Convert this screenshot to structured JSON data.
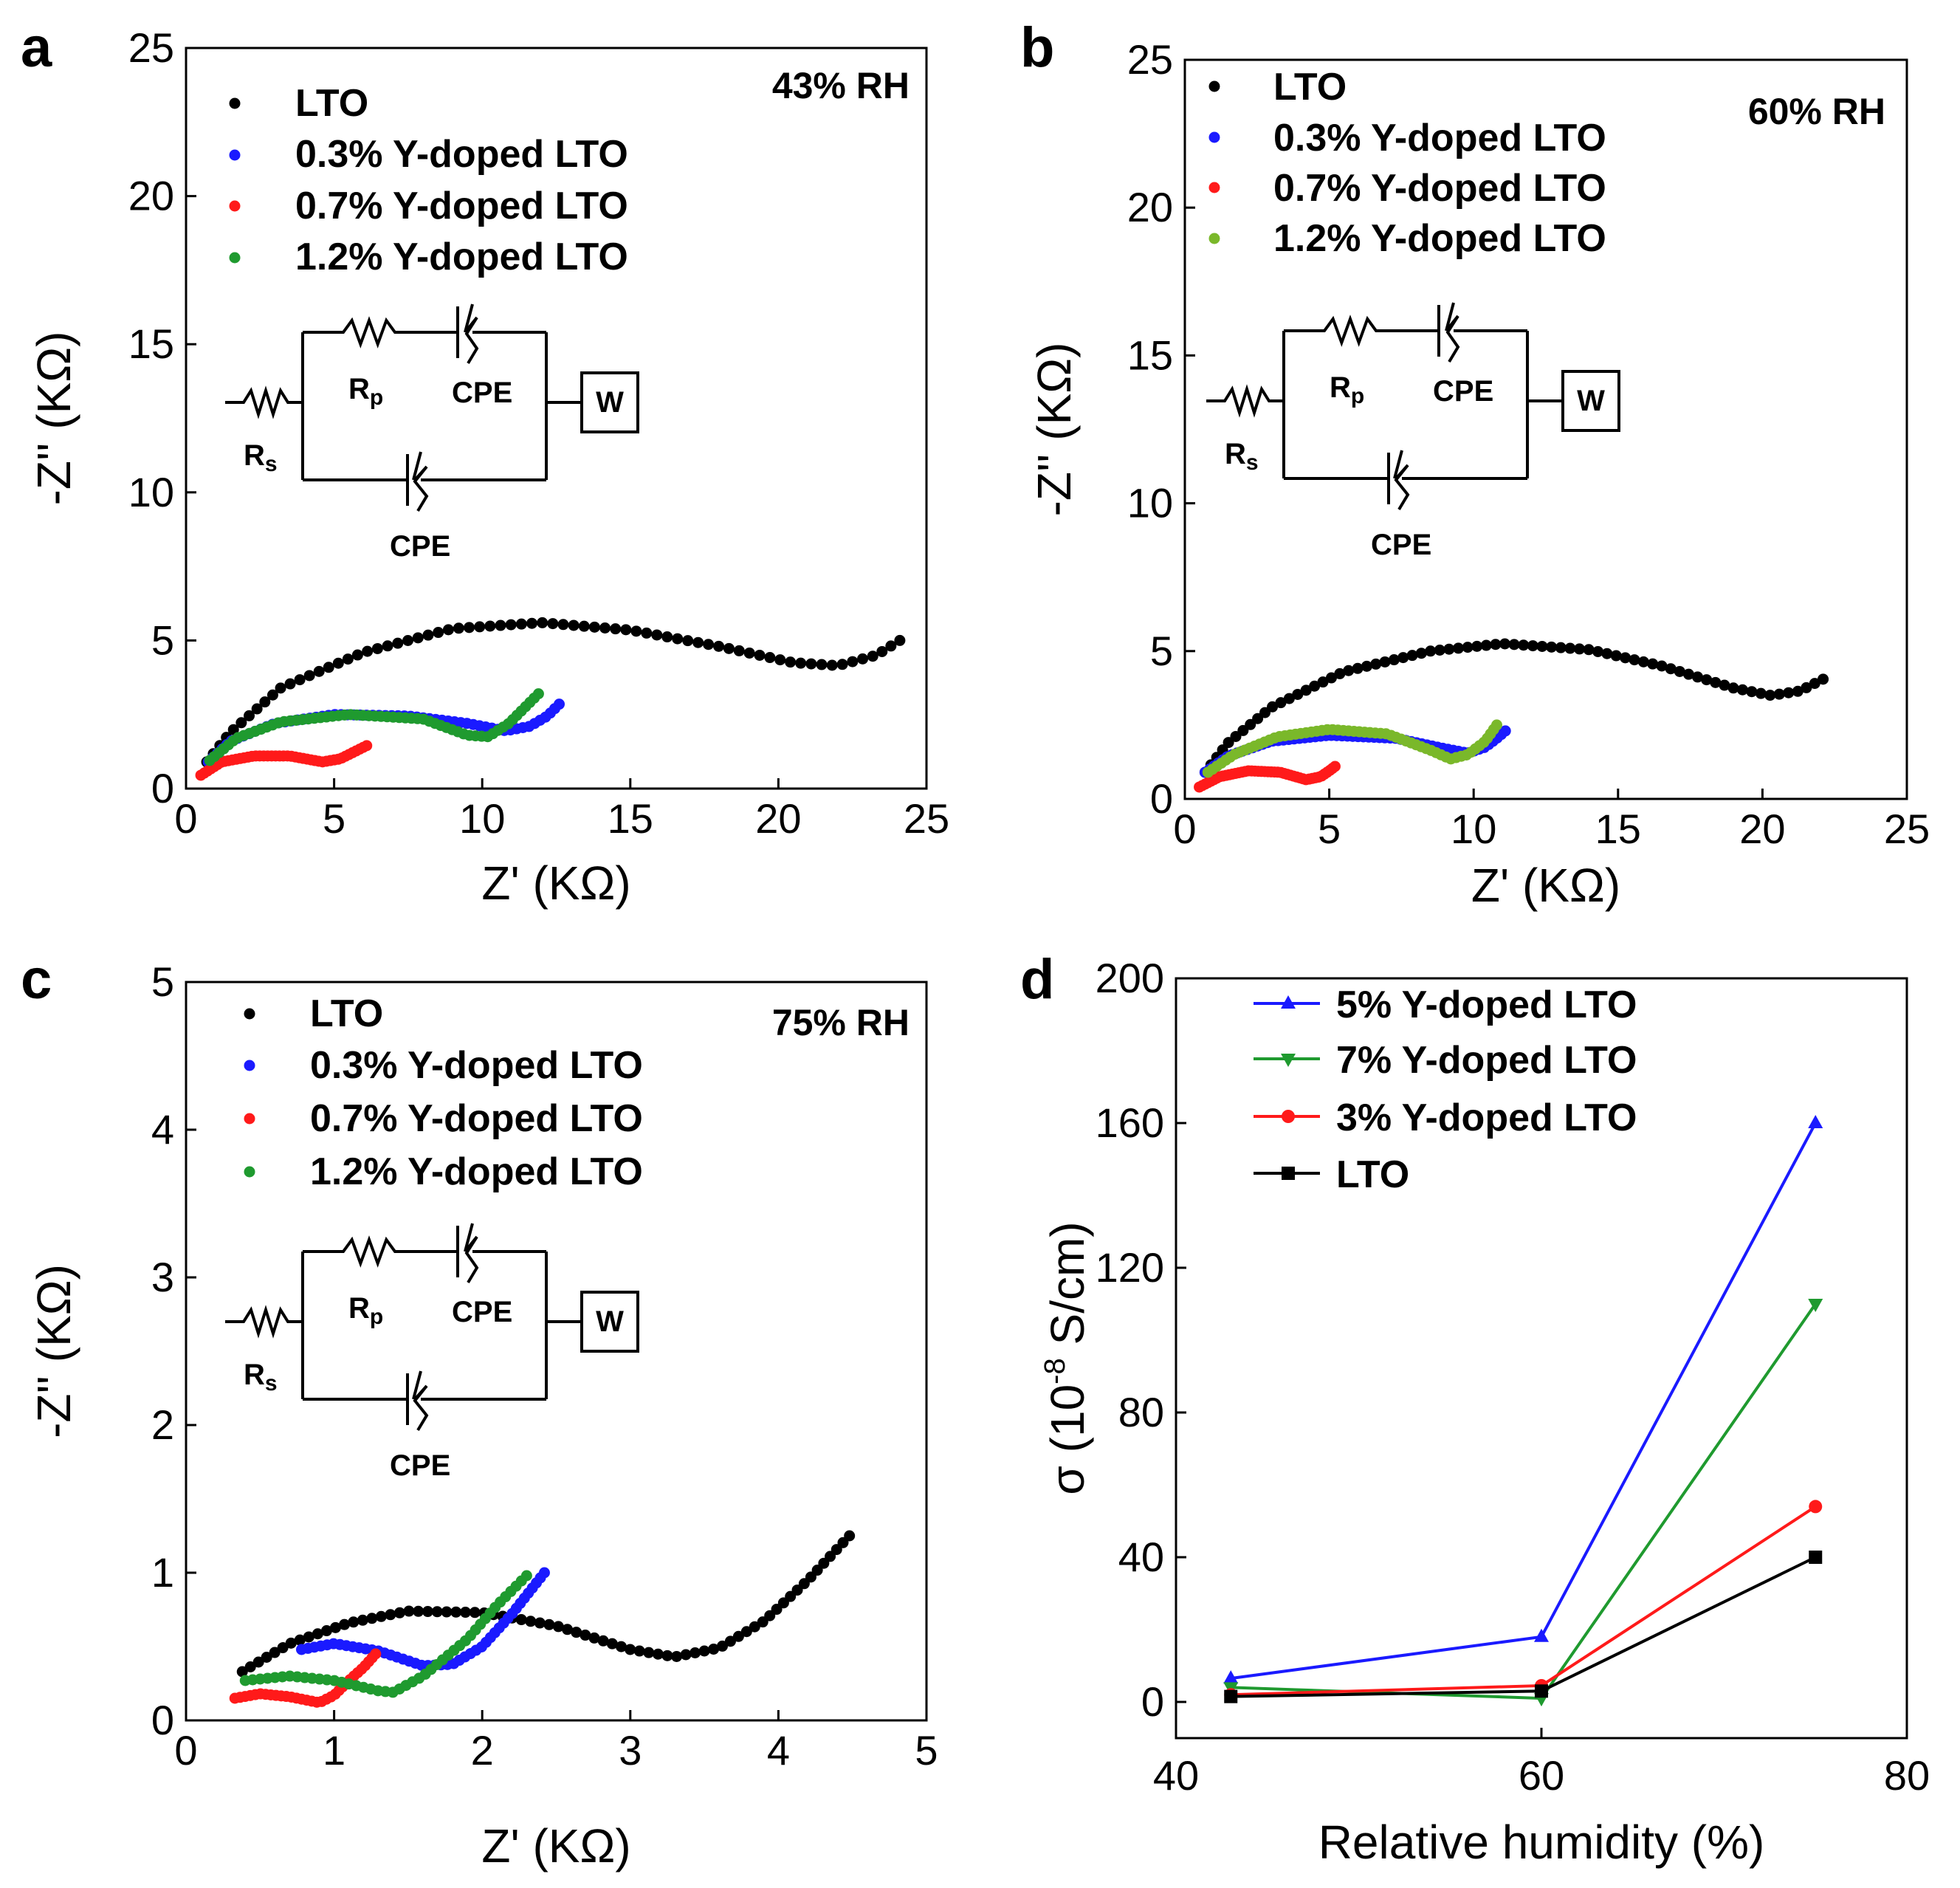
{
  "colors": {
    "lto": "#000000",
    "y03": "#1a1aff",
    "y07": "#ff1a1a",
    "y12": "#1f9a2f",
    "y12b": "#7ab82a",
    "rh": "#ff1a1a",
    "d_blue": "#1a1aff",
    "d_green": "#1f9a2f",
    "d_red": "#ff1a1a",
    "d_black": "#000000"
  },
  "circuit": {
    "rs": "R",
    "rs_sub": "s",
    "rp": "R",
    "rp_sub": "p",
    "cpe1": "CPE",
    "cpe2": "CPE",
    "w": "W"
  },
  "chart_data": [
    {
      "id": "a",
      "panel_label": "a",
      "type": "scatter",
      "annotation": "43% RH",
      "xlabel": "Z' (KΩ)",
      "ylabel": "-Z'' (KΩ)",
      "xlim": [
        0,
        25
      ],
      "ylim": [
        0,
        25
      ],
      "xticks": [
        "0",
        "5",
        "10",
        "15",
        "20",
        "25"
      ],
      "yticks": [
        "0",
        "5",
        "10",
        "15",
        "20",
        "25"
      ],
      "series": [
        {
          "name": "LTO",
          "color_key": "lto",
          "anchors": [
            [
              0.7,
              0.9
            ],
            [
              1.5,
              1.9
            ],
            [
              3.2,
              3.4
            ],
            [
              6,
              4.6
            ],
            [
              9,
              5.4
            ],
            [
              12,
              5.6
            ],
            [
              15,
              5.35
            ],
            [
              18,
              4.8
            ],
            [
              20.5,
              4.25
            ],
            [
              22,
              4.15
            ],
            [
              23.3,
              4.5
            ],
            [
              24.1,
              5.0
            ]
          ],
          "points": 72
        },
        {
          "name": "0.3% Y-doped LTO",
          "color_key": "y03",
          "anchors": [
            [
              0.75,
              0.9
            ],
            [
              1.5,
              1.6
            ],
            [
              3,
              2.2
            ],
            [
              5,
              2.5
            ],
            [
              7.5,
              2.45
            ],
            [
              9.5,
              2.2
            ],
            [
              10.8,
              1.95
            ],
            [
              11.6,
              2.1
            ],
            [
              12.2,
              2.45
            ],
            [
              12.6,
              2.85
            ]
          ],
          "points": 60
        },
        {
          "name": "0.7% Y-doped LTO",
          "color_key": "y07",
          "anchors": [
            [
              0.5,
              0.45
            ],
            [
              1.2,
              0.9
            ],
            [
              2.3,
              1.1
            ],
            [
              3.5,
              1.1
            ],
            [
              4.6,
              0.9
            ],
            [
              5.2,
              1.0
            ],
            [
              5.7,
              1.25
            ],
            [
              6.1,
              1.45
            ]
          ],
          "points": 45
        },
        {
          "name": "1.2% Y-doped LTO",
          "color_key": "y12",
          "anchors": [
            [
              0.8,
              0.95
            ],
            [
              1.7,
              1.7
            ],
            [
              3.2,
              2.25
            ],
            [
              5.5,
              2.5
            ],
            [
              8,
              2.35
            ],
            [
              9.5,
              1.8
            ],
            [
              10.2,
              1.75
            ],
            [
              10.9,
              2.2
            ],
            [
              11.4,
              2.7
            ],
            [
              11.9,
              3.2
            ]
          ],
          "points": 60
        }
      ],
      "inset": "equivalent circuit Rs + (Rp–CPE ∥ CPE) + W"
    },
    {
      "id": "b",
      "panel_label": "b",
      "type": "scatter",
      "annotation": "60% RH",
      "xlabel": "Z' (KΩ)",
      "ylabel": "-Z'' (KΩ)",
      "xlim": [
        0,
        25
      ],
      "ylim": [
        0,
        25
      ],
      "xticks": [
        "0",
        "5",
        "10",
        "15",
        "20",
        "25"
      ],
      "yticks": [
        "0",
        "5",
        "10",
        "15",
        "20",
        "25"
      ],
      "series": [
        {
          "name": "LTO",
          "color_key": "lto",
          "anchors": [
            [
              0.7,
              0.9
            ],
            [
              1.5,
              1.9
            ],
            [
              3,
              3.1
            ],
            [
              5.5,
              4.3
            ],
            [
              8.5,
              5.0
            ],
            [
              11,
              5.25
            ],
            [
              14,
              5.05
            ],
            [
              16.5,
              4.5
            ],
            [
              19,
              3.75
            ],
            [
              20.3,
              3.5
            ],
            [
              21.3,
              3.65
            ],
            [
              22.1,
              4.05
            ]
          ],
          "points": 72
        },
        {
          "name": "0.3% Y-doped LTO",
          "color_key": "y03",
          "anchors": [
            [
              0.7,
              0.9
            ],
            [
              1.5,
              1.45
            ],
            [
              3,
              1.95
            ],
            [
              5,
              2.15
            ],
            [
              7.3,
              2.05
            ],
            [
              9,
              1.7
            ],
            [
              9.8,
              1.55
            ],
            [
              10.4,
              1.75
            ],
            [
              10.8,
              2.05
            ],
            [
              11.1,
              2.3
            ]
          ],
          "points": 60
        },
        {
          "name": "0.7% Y-doped LTO",
          "color_key": "y07",
          "anchors": [
            [
              0.5,
              0.4
            ],
            [
              1.2,
              0.75
            ],
            [
              2.2,
              0.95
            ],
            [
              3.3,
              0.9
            ],
            [
              4.2,
              0.65
            ],
            [
              4.7,
              0.75
            ],
            [
              5.0,
              0.95
            ],
            [
              5.2,
              1.1
            ]
          ],
          "points": 45
        },
        {
          "name": "1.2% Y-doped LTO",
          "color_key": "y12b",
          "anchors": [
            [
              0.8,
              0.9
            ],
            [
              1.7,
              1.5
            ],
            [
              3.2,
              2.1
            ],
            [
              5,
              2.35
            ],
            [
              7,
              2.2
            ],
            [
              8.5,
              1.65
            ],
            [
              9.2,
              1.35
            ],
            [
              9.8,
              1.5
            ],
            [
              10.4,
              1.95
            ],
            [
              10.8,
              2.5
            ]
          ],
          "points": 60
        }
      ],
      "inset": "equivalent circuit Rs + (Rp–CPE ∥ CPE) + W"
    },
    {
      "id": "c",
      "panel_label": "c",
      "type": "scatter",
      "annotation": "75% RH",
      "xlabel": "Z' (KΩ)",
      "ylabel": "-Z'' (KΩ)",
      "xlim": [
        0,
        5
      ],
      "ylim": [
        0,
        5
      ],
      "xticks": [
        "0",
        "1",
        "2",
        "3",
        "4",
        "5"
      ],
      "yticks": [
        "0",
        "1",
        "2",
        "3",
        "4",
        "5"
      ],
      "series": [
        {
          "name": "LTO",
          "color_key": "lto",
          "anchors": [
            [
              0.38,
              0.33
            ],
            [
              0.7,
              0.52
            ],
            [
              1.1,
              0.66
            ],
            [
              1.5,
              0.74
            ],
            [
              2.0,
              0.73
            ],
            [
              2.5,
              0.64
            ],
            [
              3.0,
              0.48
            ],
            [
              3.3,
              0.43
            ],
            [
              3.6,
              0.49
            ],
            [
              3.9,
              0.67
            ],
            [
              4.2,
              0.95
            ],
            [
              4.48,
              1.25
            ]
          ],
          "points": 72
        },
        {
          "name": "0.3% Y-doped LTO",
          "color_key": "y03",
          "anchors": [
            [
              0.78,
              0.48
            ],
            [
              1.0,
              0.52
            ],
            [
              1.3,
              0.47
            ],
            [
              1.6,
              0.37
            ],
            [
              1.8,
              0.38
            ],
            [
              2.0,
              0.5
            ],
            [
              2.2,
              0.72
            ],
            [
              2.42,
              1.0
            ]
          ],
          "points": 45
        },
        {
          "name": "0.7% Y-doped LTO",
          "color_key": "y07",
          "anchors": [
            [
              0.33,
              0.15
            ],
            [
              0.5,
              0.18
            ],
            [
              0.7,
              0.16
            ],
            [
              0.9,
              0.12
            ],
            [
              1.0,
              0.17
            ],
            [
              1.1,
              0.27
            ],
            [
              1.2,
              0.36
            ],
            [
              1.28,
              0.45
            ]
          ],
          "points": 32
        },
        {
          "name": "1.2% Y-doped LTO",
          "color_key": "y12",
          "anchors": [
            [
              0.4,
              0.27
            ],
            [
              0.7,
              0.3
            ],
            [
              1.0,
              0.27
            ],
            [
              1.3,
              0.2
            ],
            [
              1.4,
              0.19
            ],
            [
              1.6,
              0.3
            ],
            [
              1.9,
              0.55
            ],
            [
              2.1,
              0.78
            ],
            [
              2.3,
              0.98
            ]
          ],
          "points": 45
        }
      ],
      "inset": "equivalent circuit Rs + (Rp–CPE ∥ CPE) + W"
    },
    {
      "id": "d",
      "panel_label": "d",
      "type": "line",
      "xlabel": "Relative humidity (%)",
      "ylabel": "σ (10",
      "ylabel_exp": "-8",
      "ylabel_tail": " S/cm)",
      "xlim": [
        40,
        80
      ],
      "ylim": [
        -10,
        200
      ],
      "xticks": [
        "40",
        "60",
        "80"
      ],
      "yticks": [
        "0",
        "40",
        "80",
        "120",
        "160",
        "200"
      ],
      "x": [
        43,
        60,
        75
      ],
      "series": [
        {
          "name": "5% Y-doped LTO",
          "color_key": "d_blue",
          "marker": "triangle-up",
          "values": [
            6.5,
            18,
            160
          ]
        },
        {
          "name": "7% Y-doped LTO",
          "color_key": "d_green",
          "marker": "triangle-down",
          "values": [
            4,
            1,
            110
          ]
        },
        {
          "name": "3% Y-doped LTO",
          "color_key": "d_red",
          "marker": "circle",
          "values": [
            2,
            4.5,
            54
          ]
        },
        {
          "name": "LTO",
          "color_key": "d_black",
          "marker": "square",
          "values": [
            1.5,
            3,
            40
          ]
        }
      ]
    }
  ]
}
